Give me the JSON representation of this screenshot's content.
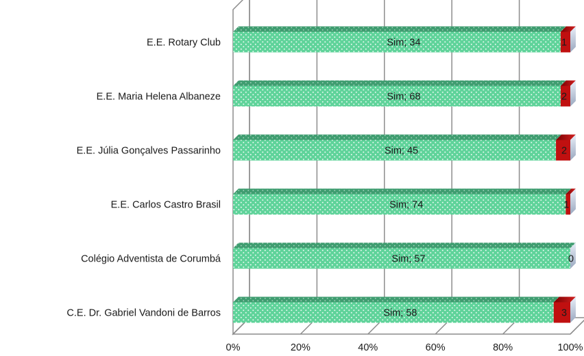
{
  "chart_data": {
    "type": "bar",
    "orientation": "horizontal",
    "stacked": "100%",
    "three_d": true,
    "categories": [
      "E.E. Rotary Club",
      "E.E. Maria Helena Albaneze",
      "E.E. Júlia Gonçalves Passarinho",
      "E.E. Carlos Castro Brasil",
      "Colégio Adventista de Corumbá",
      "C.E. Dr. Gabriel Vandoni de Barros"
    ],
    "series": [
      {
        "values": [
          34,
          68,
          45,
          74,
          57,
          58
        ],
        "labels": [
          "Sim; 34",
          "Sim; 68",
          "Sim; 45",
          "Sim; 74",
          "Sim; 57",
          "Sim; 58"
        ],
        "color": "#5fd39a",
        "pattern": "dotted"
      },
      {
        "values": [
          1,
          2,
          2,
          1,
          0,
          3
        ],
        "labels": [
          "1",
          "2",
          "2",
          "1",
          "0",
          "3"
        ],
        "color": "#b00000"
      }
    ],
    "xaxis": {
      "ticks": [
        "0%",
        "20%",
        "40%",
        "60%",
        "80%",
        "100%"
      ],
      "range": [
        0,
        100
      ]
    },
    "grid": true,
    "legend": "none"
  }
}
